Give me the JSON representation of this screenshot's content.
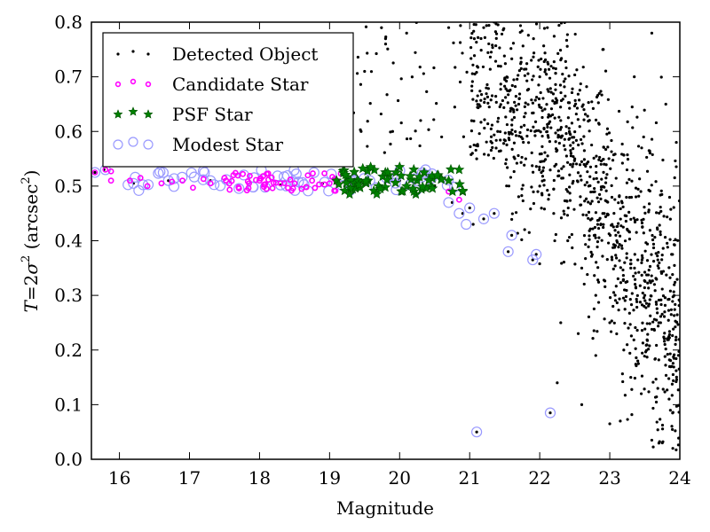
{
  "chart_data": {
    "type": "scatter",
    "title": "",
    "xlabel": "Magnitude",
    "ylabel": "T = 2σ² (arcsec²)",
    "ylabel_parts": {
      "lhs": "T",
      "eq": "=2",
      "sigma": "σ",
      "exp": "2",
      "unit_open": " (arcsec",
      "unit_close": ")"
    },
    "xlim": [
      15.6,
      24
    ],
    "ylim": [
      0.0,
      0.8
    ],
    "xticks": [
      16,
      17,
      18,
      19,
      20,
      21,
      22,
      23,
      24
    ],
    "xtick_labels": [
      "16",
      "17",
      "18",
      "19",
      "20",
      "21",
      "22",
      "23",
      "24"
    ],
    "yticks": [
      0.0,
      0.1,
      0.2,
      0.3,
      0.4,
      0.5,
      0.6,
      0.7,
      0.8
    ],
    "ytick_labels": [
      "0.0",
      "0.1",
      "0.2",
      "0.3",
      "0.4",
      "0.5",
      "0.6",
      "0.7",
      "0.8"
    ],
    "grid": false,
    "legend_position": "top-left",
    "series": [
      {
        "name": "Detected Object",
        "marker": "dot",
        "color": "#000000",
        "description": "Dense cloud of faint objects concentrated at magnitude 21–24, T spread 0.0–0.8, plus the bright stellar locus",
        "points": [
          [
            15.65,
            0.525
          ],
          [
            15.78,
            0.53
          ],
          [
            16.2,
            0.505
          ],
          [
            16.7,
            0.51
          ],
          [
            17.3,
            0.51
          ],
          [
            18.3,
            0.502
          ],
          [
            18.9,
            0.505
          ],
          [
            19.2,
            0.645
          ],
          [
            19.5,
            0.505
          ],
          [
            20.0,
            0.51
          ],
          [
            20.5,
            0.5
          ],
          [
            20.75,
            0.47
          ],
          [
            20.9,
            0.45
          ],
          [
            21.0,
            0.46
          ],
          [
            21.05,
            0.43
          ],
          [
            21.1,
            0.05
          ],
          [
            21.2,
            0.44
          ],
          [
            21.35,
            0.45
          ],
          [
            21.55,
            0.38
          ],
          [
            21.6,
            0.41
          ],
          [
            21.85,
            0.415
          ],
          [
            21.9,
            0.365
          ],
          [
            21.95,
            0.375
          ],
          [
            22.15,
            0.085
          ],
          [
            22.25,
            0.14
          ],
          [
            22.6,
            0.1
          ],
          [
            22.3,
            0.25
          ],
          [
            22.55,
            0.23
          ],
          [
            22.8,
            0.19
          ],
          [
            23.0,
            0.065
          ],
          [
            23.15,
            0.07
          ],
          [
            23.3,
            0.15
          ],
          [
            23.45,
            0.12
          ],
          [
            23.6,
            0.035
          ],
          [
            23.75,
            0.03
          ],
          [
            23.9,
            0.02
          ],
          [
            24.0,
            0.29
          ],
          [
            23.95,
            0.58
          ],
          [
            23.8,
            0.65
          ],
          [
            23.35,
            0.7
          ],
          [
            22.9,
            0.75
          ],
          [
            23.6,
            0.78
          ],
          [
            21.2,
            0.79
          ],
          [
            20.7,
            0.79
          ],
          [
            20.1,
            0.78
          ],
          [
            19.8,
            0.76
          ],
          [
            19.5,
            0.71
          ],
          [
            19.3,
            0.66
          ],
          [
            19.45,
            0.6
          ],
          [
            19.9,
            0.6
          ],
          [
            20.3,
            0.62
          ],
          [
            20.6,
            0.59
          ],
          [
            21.1,
            0.55
          ],
          [
            21.4,
            0.6
          ],
          [
            21.7,
            0.65
          ],
          [
            22.0,
            0.7
          ],
          [
            22.3,
            0.62
          ],
          [
            22.5,
            0.55
          ],
          [
            22.7,
            0.5
          ],
          [
            22.9,
            0.45
          ],
          [
            23.1,
            0.4
          ],
          [
            23.3,
            0.35
          ],
          [
            23.5,
            0.3
          ],
          [
            23.7,
            0.25
          ],
          [
            22.0,
            0.5
          ],
          [
            21.8,
            0.55
          ],
          [
            22.2,
            0.45
          ],
          [
            22.4,
            0.4
          ],
          [
            22.6,
            0.35
          ],
          [
            22.8,
            0.3
          ],
          [
            23.0,
            0.25
          ],
          [
            23.2,
            0.2
          ],
          [
            23.4,
            0.18
          ]
        ]
      },
      {
        "name": "Candidate Star",
        "marker": "circle-small",
        "color": "#ff00ff",
        "description": "Stellar locus magnitude 15.6–21.0 at T ≈ 0.49–0.53",
        "points": [
          [
            15.65,
            0.525
          ],
          [
            15.8,
            0.53
          ],
          [
            15.88,
            0.51
          ],
          [
            15.88,
            0.527
          ],
          [
            16.15,
            0.51
          ],
          [
            16.3,
            0.515
          ],
          [
            16.4,
            0.5
          ],
          [
            16.6,
            0.505
          ],
          [
            16.75,
            0.508
          ],
          [
            16.9,
            0.51
          ],
          [
            17.05,
            0.497
          ],
          [
            17.2,
            0.513
          ],
          [
            17.3,
            0.505
          ],
          [
            17.5,
            0.515
          ],
          [
            17.7,
            0.498
          ],
          [
            17.85,
            0.505
          ],
          [
            18.0,
            0.51
          ],
          [
            18.1,
            0.495
          ],
          [
            18.3,
            0.505
          ],
          [
            18.5,
            0.505
          ],
          [
            18.6,
            0.495
          ],
          [
            18.75,
            0.51
          ],
          [
            18.85,
            0.503
          ],
          [
            19.0,
            0.505
          ],
          [
            19.1,
            0.51
          ],
          [
            20.7,
            0.49
          ],
          [
            20.85,
            0.475
          ]
        ]
      },
      {
        "name": "PSF Star",
        "marker": "star",
        "color": "#008000",
        "description": "Selected PSF stars magnitude 19.1–21.0 at T ≈ 0.48–0.54",
        "points": [
          [
            19.1,
            0.51
          ],
          [
            19.15,
            0.55
          ],
          [
            19.4,
            0.505
          ],
          [
            19.55,
            0.51
          ],
          [
            19.7,
            0.5
          ],
          [
            19.85,
            0.52
          ],
          [
            19.95,
            0.525
          ],
          [
            20.0,
            0.535
          ],
          [
            20.1,
            0.5
          ],
          [
            20.25,
            0.51
          ],
          [
            20.35,
            0.525
          ],
          [
            20.45,
            0.5
          ],
          [
            20.55,
            0.52
          ],
          [
            20.7,
            0.51
          ],
          [
            20.85,
            0.53
          ],
          [
            20.9,
            0.49
          ]
        ]
      },
      {
        "name": "Modest Star",
        "marker": "circle-open",
        "color": "#9999ff",
        "description": "Modest star classification; overlaps candidate locus and scattered faint objects",
        "points": [
          [
            15.65,
            0.525
          ],
          [
            15.8,
            0.53
          ],
          [
            16.2,
            0.505
          ],
          [
            16.7,
            0.51
          ],
          [
            17.3,
            0.51
          ],
          [
            18.3,
            0.502
          ],
          [
            19.2,
            0.645
          ],
          [
            20.7,
            0.47
          ],
          [
            20.85,
            0.45
          ],
          [
            20.95,
            0.43
          ],
          [
            21.0,
            0.46
          ],
          [
            21.1,
            0.05
          ],
          [
            21.2,
            0.44
          ],
          [
            21.35,
            0.45
          ],
          [
            21.55,
            0.38
          ],
          [
            21.6,
            0.41
          ],
          [
            21.9,
            0.365
          ],
          [
            21.95,
            0.375
          ],
          [
            22.15,
            0.085
          ]
        ]
      }
    ]
  },
  "legend": {
    "items": [
      {
        "label": "Detected Object",
        "marker": "dot",
        "color": "#000000"
      },
      {
        "label": "Candidate Star",
        "marker": "circle-small",
        "color": "#ff00ff"
      },
      {
        "label": "PSF Star",
        "marker": "star",
        "color": "#008000"
      },
      {
        "label": "Modest Star",
        "marker": "circle-open",
        "color": "#9999ff"
      }
    ]
  }
}
